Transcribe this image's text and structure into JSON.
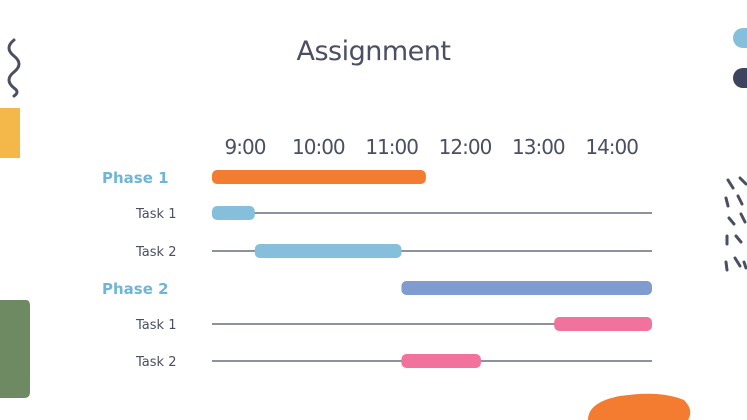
{
  "page": {
    "title": "Assignment"
  },
  "colors": {
    "background": "#ffffff",
    "text": "#4a4f63",
    "phase_label": "#6fb6d6",
    "track": "#4a4f63",
    "orange": "#f47c30",
    "light_blue": "#86bfdc",
    "periwinkle": "#7f9bcf",
    "pink": "#f0729d",
    "green": "#6d8a62",
    "yellow": "#f4b84a",
    "navy": "#3e4460"
  },
  "chart_data": {
    "type": "gantt",
    "title": "Assignment",
    "time_ticks": [
      "9:00",
      "10:00",
      "11:00",
      "12:00",
      "13:00",
      "14:00"
    ],
    "xlim": [
      "9:00",
      "15:00"
    ],
    "rows": [
      {
        "label": "Phase 1",
        "kind": "phase",
        "start": "9:00",
        "end": "11:55",
        "color": "#f47c30"
      },
      {
        "label": "Task 1",
        "kind": "task",
        "start": "9:00",
        "end": "9:35",
        "color": "#86bfdc"
      },
      {
        "label": "Task 2",
        "kind": "task",
        "start": "9:35",
        "end": "11:35",
        "color": "#86bfdc"
      },
      {
        "label": "Phase 2",
        "kind": "phase",
        "start": "11:35",
        "end": "15:00",
        "color": "#7f9bcf"
      },
      {
        "label": "Task 1",
        "kind": "task",
        "start": "13:40",
        "end": "15:00",
        "color": "#f0729d"
      },
      {
        "label": "Task 2",
        "kind": "task",
        "start": "11:35",
        "end": "12:40",
        "color": "#f0729d"
      }
    ]
  }
}
